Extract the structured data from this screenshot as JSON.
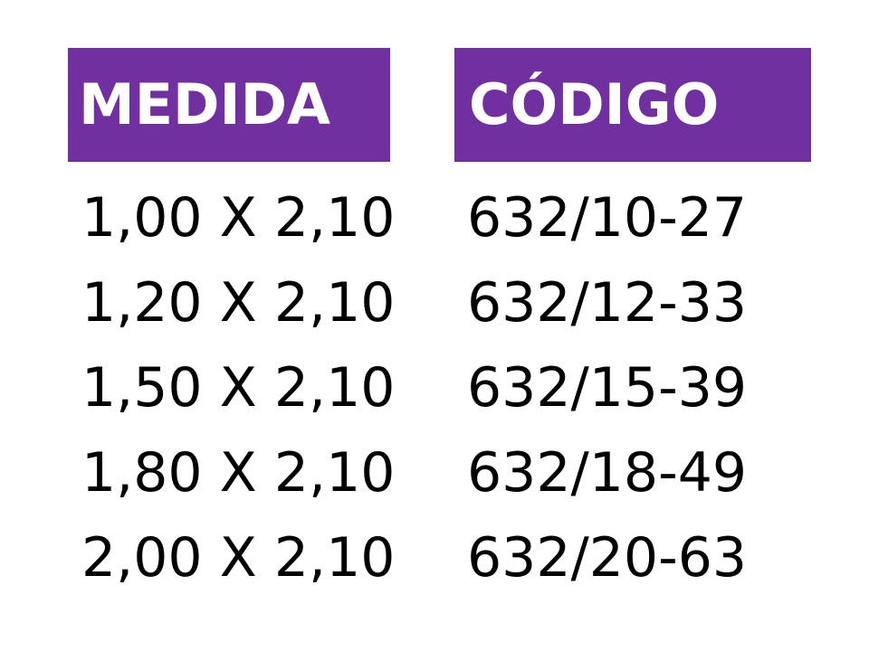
{
  "table": {
    "headers": [
      "MEDIDA",
      "CÓDIGO"
    ],
    "rows": [
      [
        "1,00 X 2,10",
        "632/10-27"
      ],
      [
        "1,20 X 2,10",
        "632/12-33"
      ],
      [
        "1,50 X 2,10",
        "632/15-39"
      ],
      [
        "1,80 X 2,10",
        "632/18-49"
      ],
      [
        "2,00 X 2,10",
        "632/20-63"
      ]
    ]
  }
}
